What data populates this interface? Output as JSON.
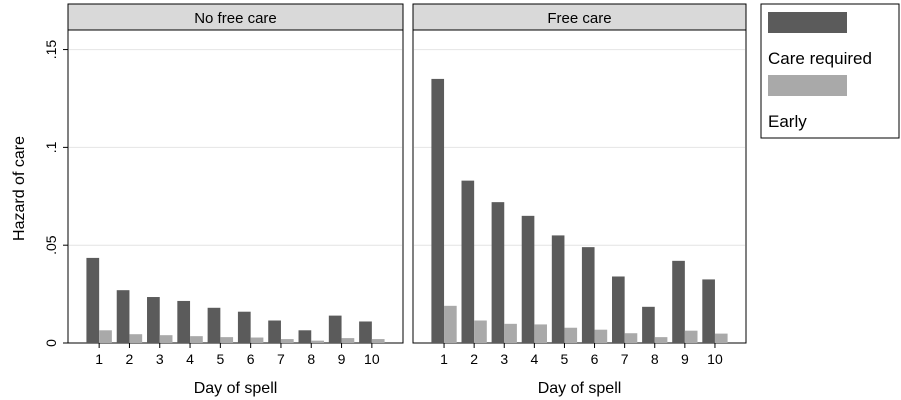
{
  "chart_data": {
    "type": "bar",
    "ylabel": "Hazard of care",
    "xlabel": "Day of spell",
    "ylim": [
      0,
      0.16
    ],
    "yticks": [
      0,
      0.05,
      0.1,
      0.15
    ],
    "ytick_labels": [
      "0",
      ".05",
      ".1",
      ".15"
    ],
    "categories": [
      "1",
      "2",
      "3",
      "4",
      "5",
      "6",
      "7",
      "8",
      "9",
      "10"
    ],
    "grid": true,
    "legend_position": "right",
    "series_colors": {
      "care_required": "#5b5b5b",
      "early": "#a9a9a9"
    },
    "legend": [
      "Care required",
      "Early"
    ],
    "panels": [
      {
        "title": "No free care",
        "series": [
          {
            "name": "Care required",
            "values": [
              0.0435,
              0.027,
              0.0235,
              0.0215,
              0.018,
              0.016,
              0.0115,
              0.0065,
              0.014,
              0.011
            ]
          },
          {
            "name": "Early",
            "values": [
              0.0065,
              0.0045,
              0.004,
              0.0035,
              0.003,
              0.0028,
              0.002,
              0.0012,
              0.0025,
              0.002
            ]
          }
        ]
      },
      {
        "title": "Free care",
        "series": [
          {
            "name": "Care required",
            "values": [
              0.135,
              0.083,
              0.072,
              0.065,
              0.055,
              0.049,
              0.034,
              0.0185,
              0.042,
              0.0325
            ]
          },
          {
            "name": "Early",
            "values": [
              0.019,
              0.0115,
              0.0098,
              0.0095,
              0.0078,
              0.0068,
              0.005,
              0.003,
              0.0063,
              0.0048
            ]
          }
        ]
      }
    ]
  }
}
